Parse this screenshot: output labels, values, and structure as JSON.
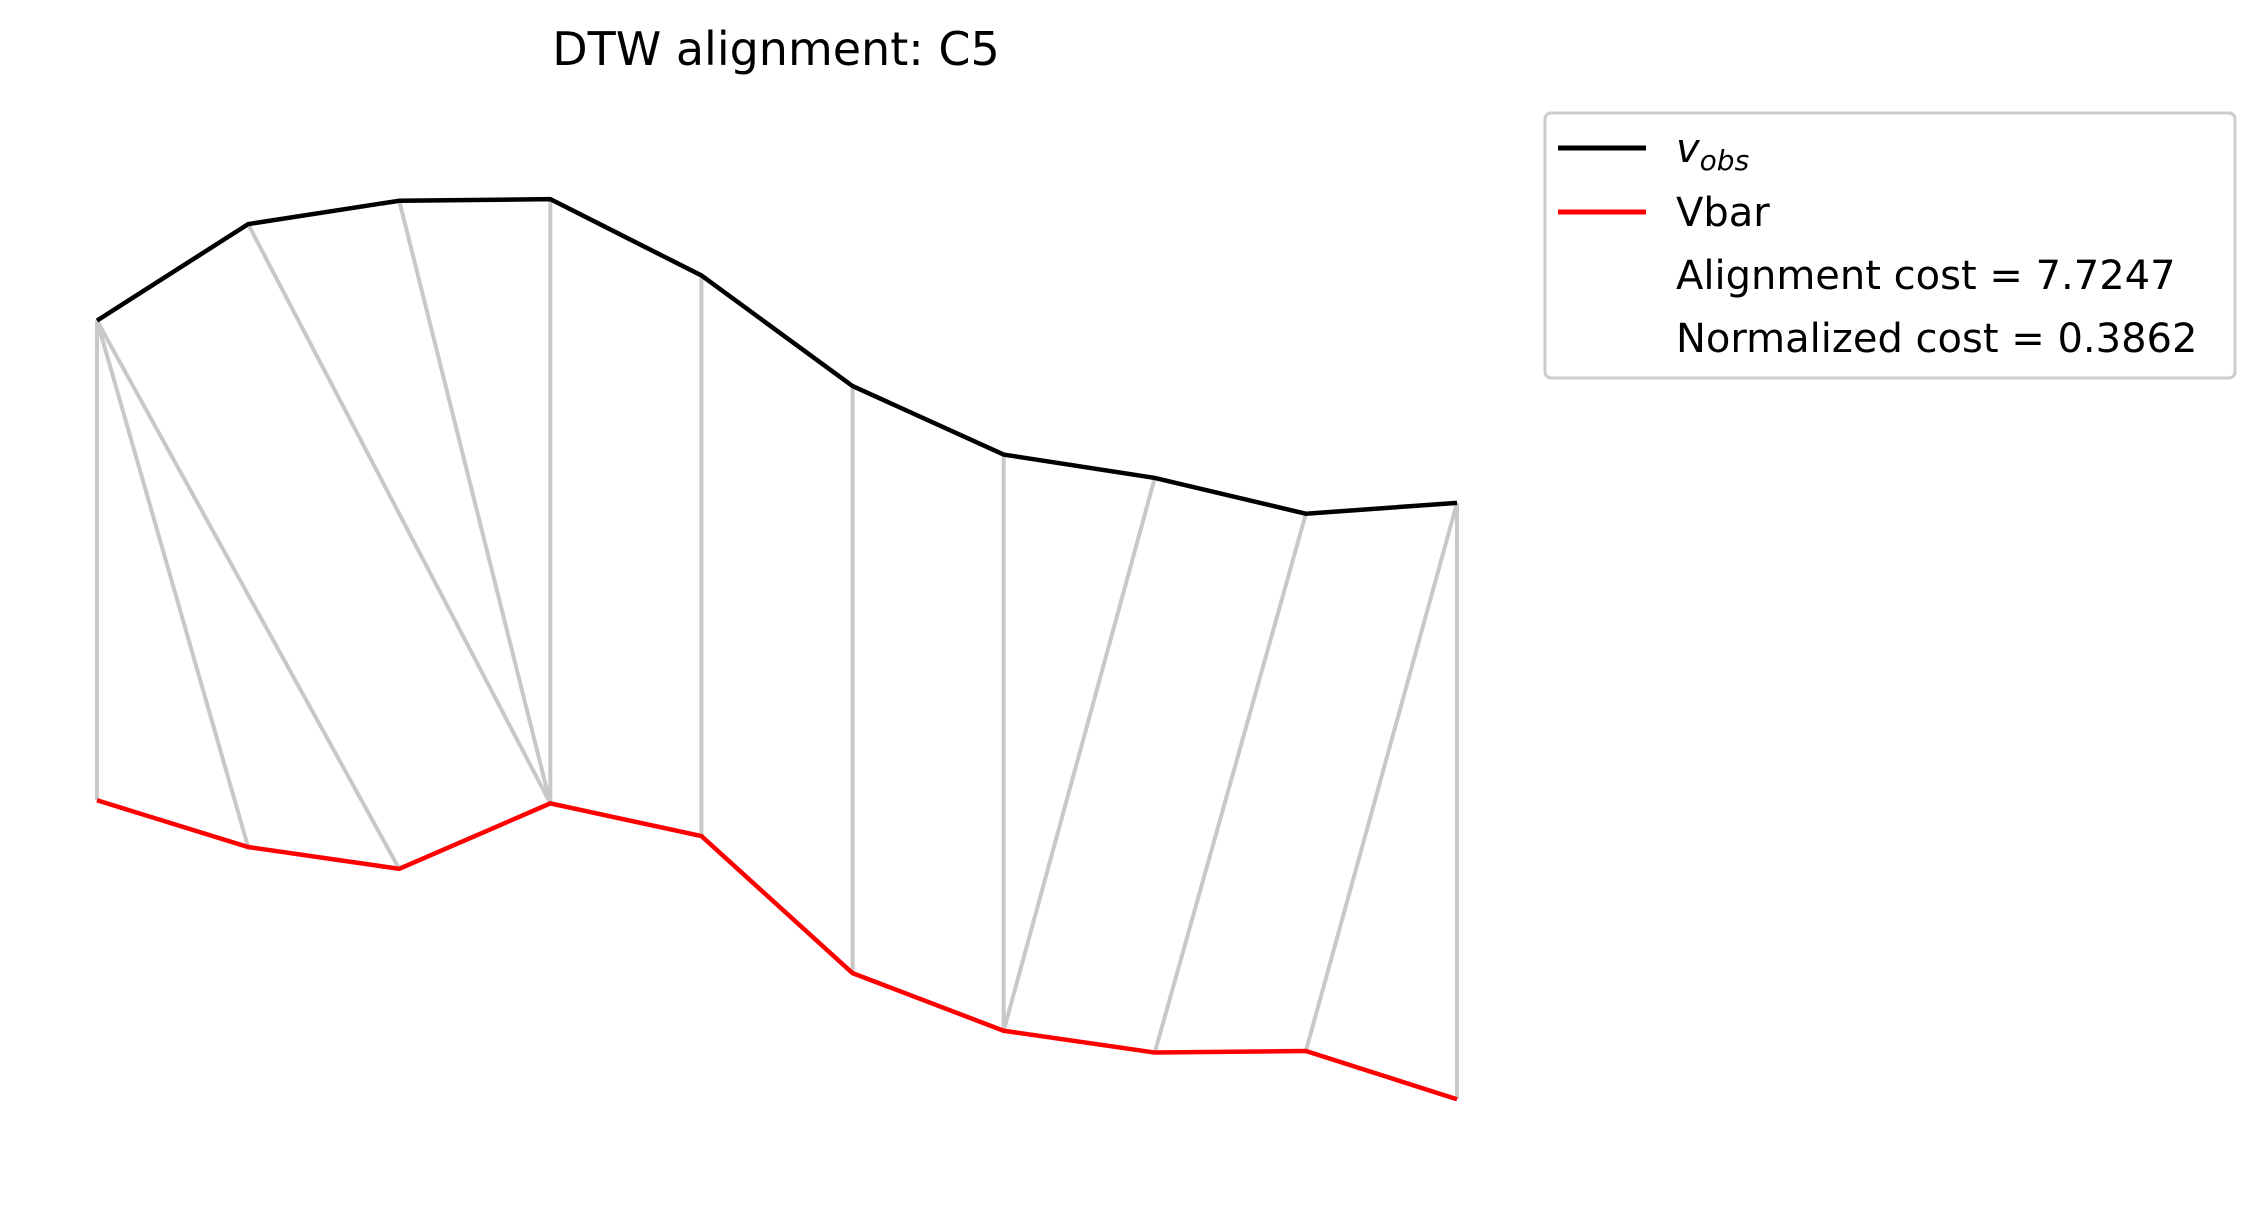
{
  "chart_data": {
    "type": "line",
    "title": "DTW alignment: C5",
    "axes_visible": false,
    "grid": false,
    "legend_placement": "outside upper right",
    "x": [
      0,
      1,
      2,
      3,
      4,
      5,
      6,
      7,
      8,
      9
    ],
    "series": [
      {
        "name": "v_obs",
        "legend_main": "v",
        "legend_sub": "obs",
        "color": "#000000",
        "values": [
          0.94,
          1.56,
          1.71,
          1.72,
          1.23,
          0.52,
          0.08,
          -0.07,
          -0.3,
          -0.23
        ]
      },
      {
        "name": "Vbar",
        "color": "#ff0000",
        "values": [
          -2.14,
          -2.44,
          -2.58,
          -2.16,
          -2.37,
          -3.25,
          -3.62,
          -3.76,
          -3.75,
          -4.06
        ]
      }
    ],
    "alignment": {
      "color": "#c8c8c8",
      "pairs": [
        [
          0,
          0
        ],
        [
          0,
          1
        ],
        [
          0,
          2
        ],
        [
          1,
          3
        ],
        [
          2,
          3
        ],
        [
          3,
          3
        ],
        [
          4,
          4
        ],
        [
          5,
          5
        ],
        [
          6,
          6
        ],
        [
          7,
          6
        ],
        [
          8,
          7
        ],
        [
          9,
          8
        ],
        [
          9,
          9
        ]
      ]
    },
    "annotations": {
      "alignment_cost_text": "Alignment cost = 7.7247",
      "normalized_cost_text": "Normalized cost = 0.3862"
    },
    "ylim": [
      -4.45,
      2.1
    ]
  }
}
